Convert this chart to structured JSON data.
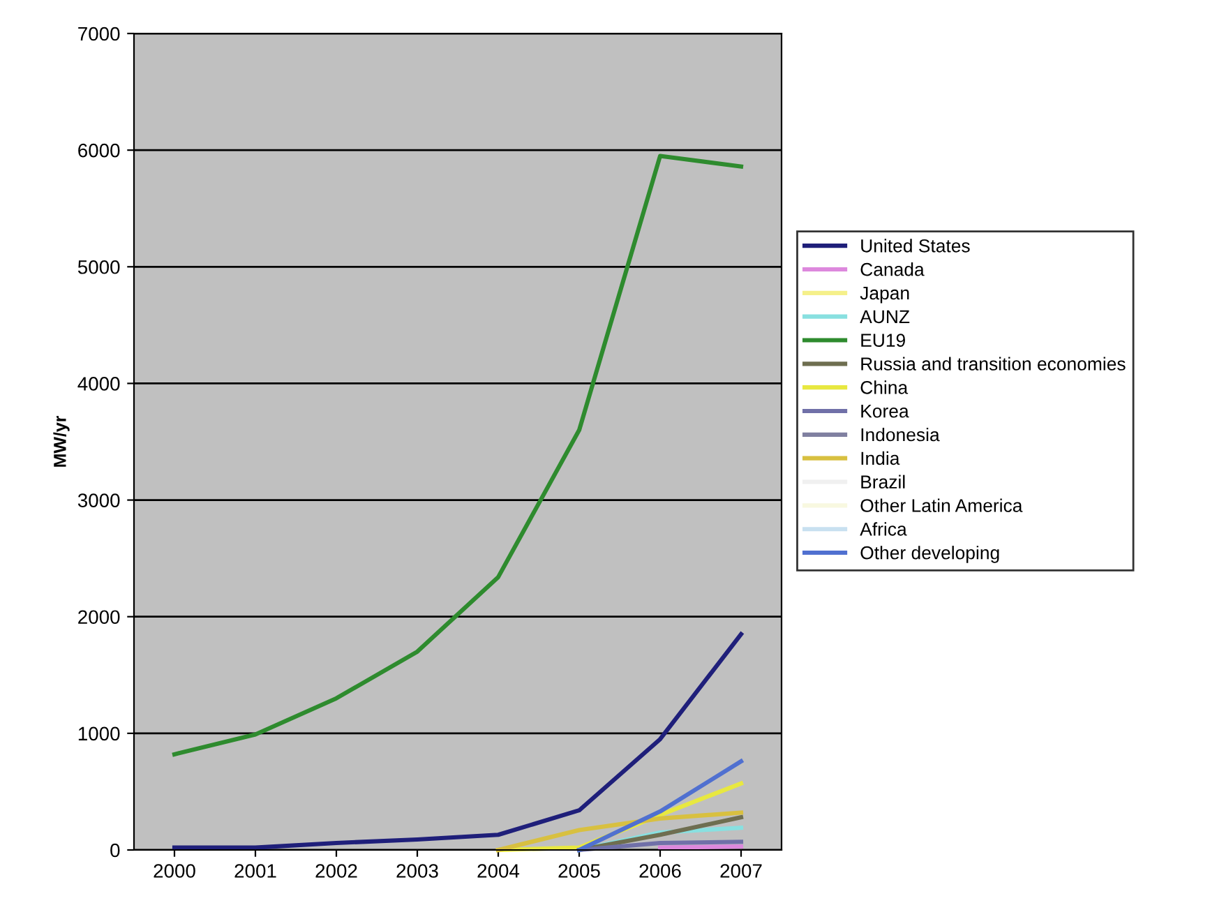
{
  "chart_data": {
    "type": "line",
    "ylabel": "MW/yr",
    "categories": [
      "2000",
      "2001",
      "2002",
      "2003",
      "2004",
      "2005",
      "2006",
      "2007"
    ],
    "series": [
      {
        "name": "United States",
        "color": "#1f1f7a",
        "values": [
          20,
          20,
          60,
          90,
          130,
          340,
          950,
          1850
        ]
      },
      {
        "name": "Canada",
        "color": "#dd88dd",
        "values": [
          null,
          null,
          null,
          null,
          null,
          null,
          20,
          30
        ]
      },
      {
        "name": "Japan",
        "color": "#f5f08a",
        "values": [
          null,
          null,
          null,
          null,
          null,
          null,
          null,
          null
        ]
      },
      {
        "name": "AUNZ",
        "color": "#88e0e0",
        "values": [
          null,
          null,
          null,
          null,
          null,
          0,
          150,
          190
        ]
      },
      {
        "name": "EU19",
        "color": "#2e8b2e",
        "values": [
          820,
          990,
          1300,
          1700,
          2340,
          3600,
          5950,
          5860
        ]
      },
      {
        "name": "Russia and transition economies",
        "color": "#6e6e50",
        "values": [
          null,
          null,
          null,
          null,
          null,
          0,
          130,
          280
        ]
      },
      {
        "name": "China",
        "color": "#e8e840",
        "values": [
          null,
          null,
          null,
          null,
          0,
          20,
          300,
          570
        ]
      },
      {
        "name": "Korea",
        "color": "#7070a8",
        "values": [
          null,
          null,
          null,
          null,
          null,
          0,
          60,
          70
        ]
      },
      {
        "name": "Indonesia",
        "color": "#8080a0",
        "values": [
          null,
          null,
          null,
          null,
          null,
          null,
          null,
          null
        ]
      },
      {
        "name": "India",
        "color": "#d8c040",
        "values": [
          null,
          null,
          null,
          null,
          0,
          170,
          270,
          320
        ]
      },
      {
        "name": "Brazil",
        "color": "#f0f0f0",
        "values": [
          null,
          null,
          null,
          null,
          null,
          null,
          null,
          null
        ]
      },
      {
        "name": "Other Latin America",
        "color": "#f8f8e0",
        "values": [
          null,
          null,
          null,
          null,
          null,
          null,
          null,
          null
        ]
      },
      {
        "name": "Africa",
        "color": "#c8e0f0",
        "values": [
          null,
          null,
          null,
          null,
          null,
          null,
          null,
          null
        ]
      },
      {
        "name": "Other developing",
        "color": "#5070d0",
        "values": [
          null,
          null,
          null,
          null,
          null,
          0,
          330,
          760
        ]
      }
    ],
    "ylim": [
      0,
      7000
    ],
    "yticks": [
      0,
      1000,
      2000,
      3000,
      4000,
      5000,
      6000,
      7000
    ],
    "grid": "y",
    "legend": "right",
    "line_style": "solid",
    "marker": "none"
  }
}
